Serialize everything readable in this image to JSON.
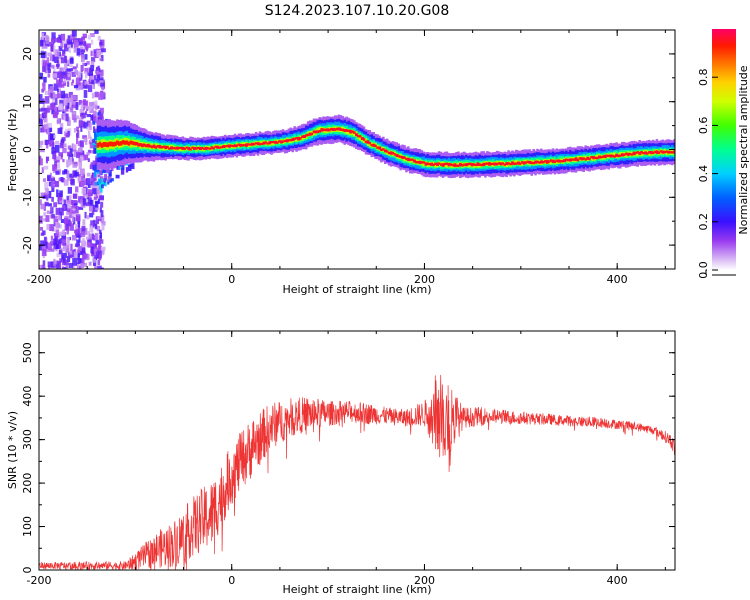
{
  "title": "S124.2023.107.10.20.G08",
  "chart_data": [
    {
      "type": "heatmap",
      "name": "spectrogram",
      "xlabel": "Height of straight line (km)",
      "ylabel": "Frequency (Hz)",
      "xlim": [
        -200,
        460
      ],
      "ylim": [
        -25,
        25
      ],
      "xticks": [
        -200,
        0,
        200,
        400
      ],
      "xtick_labels": [
        "-200",
        "0",
        "200",
        "400"
      ],
      "yticks": [
        -20,
        -10,
        0,
        10,
        20
      ],
      "ytick_labels": [
        "-20",
        "-10",
        "0",
        "10",
        "20"
      ],
      "ridge": {
        "x": [
          -130,
          -110,
          -90,
          -70,
          -50,
          -30,
          -10,
          10,
          30,
          50,
          70,
          90,
          110,
          125,
          140,
          160,
          180,
          200,
          220,
          240,
          260,
          280,
          300,
          320,
          340,
          360,
          380,
          400,
          420,
          440,
          460
        ],
        "y": [
          1,
          1.5,
          0.8,
          0.4,
          0.2,
          0.2,
          0.6,
          0.9,
          1.3,
          1.6,
          2.4,
          4.0,
          4.3,
          3.5,
          1.5,
          -0.5,
          -2.0,
          -3.0,
          -3.2,
          -3.2,
          -3.1,
          -3.0,
          -2.8,
          -2.6,
          -2.4,
          -2.0,
          -1.6,
          -1.2,
          -0.8,
          -0.6,
          -0.5
        ],
        "width_hz": [
          4,
          3.5,
          2.5,
          2,
          1.8,
          1.8,
          1.8,
          1.8,
          1.8,
          1.8,
          2,
          2.2,
          2.2,
          2.2,
          2,
          2,
          2,
          2,
          2,
          2,
          2,
          2,
          2,
          2,
          2,
          2,
          2,
          2,
          2,
          2,
          2
        ]
      },
      "noise_region": [
        -200,
        -140
      ],
      "colorbar": {
        "label": "Normalized spectral amplitude",
        "range": [
          0,
          1
        ],
        "ticks": [
          "0.0",
          "0.2",
          "0.4",
          "0.6",
          "0.8"
        ],
        "tick_values": [
          0,
          0.2,
          0.4,
          0.6,
          0.8
        ]
      }
    },
    {
      "type": "line",
      "name": "snr",
      "color": "#ee3333",
      "xlabel": "Height of straight line (km)",
      "ylabel": "SNR (10 * v/v)",
      "xlim": [
        -200,
        460
      ],
      "ylim": [
        0,
        550
      ],
      "xticks": [
        -200,
        0,
        200,
        400
      ],
      "xtick_labels": [
        "-200",
        "0",
        "200",
        "400"
      ],
      "yticks": [
        0,
        100,
        200,
        300,
        400,
        500
      ],
      "ytick_labels": [
        "0",
        "100",
        "200",
        "300",
        "400",
        "500"
      ],
      "envelope": {
        "x": [
          -200,
          -110,
          -100,
          -80,
          -60,
          -40,
          -20,
          0,
          20,
          40,
          60,
          80,
          100,
          120,
          140,
          160,
          180,
          200,
          220,
          240,
          260,
          300,
          340,
          380,
          420,
          440,
          455,
          460
        ],
        "mean": [
          10,
          10,
          20,
          45,
          60,
          100,
          130,
          220,
          280,
          330,
          350,
          360,
          360,
          365,
          360,
          355,
          350,
          360,
          350,
          350,
          355,
          350,
          345,
          340,
          330,
          320,
          300,
          280
        ],
        "noise": [
          8,
          10,
          20,
          40,
          55,
          70,
          80,
          70,
          70,
          55,
          45,
          40,
          30,
          25,
          25,
          20,
          20,
          30,
          120,
          25,
          20,
          15,
          12,
          12,
          10,
          10,
          15,
          20
        ]
      }
    }
  ]
}
